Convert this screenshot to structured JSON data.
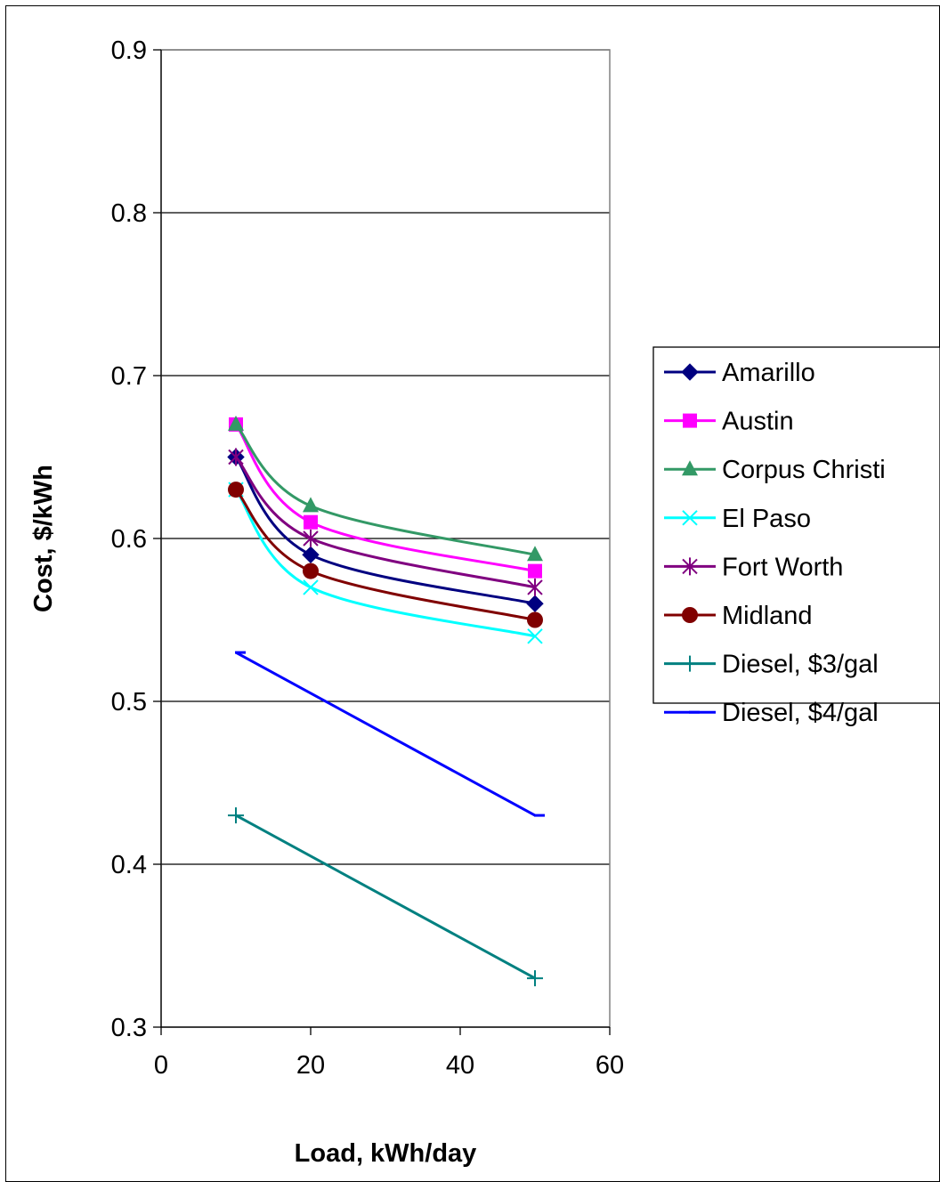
{
  "chart_data": {
    "type": "line",
    "xlabel": "Load, kWh/day",
    "ylabel": "Cost, $/kWh",
    "xlim": [
      0,
      60
    ],
    "ylim": [
      0.3,
      0.9
    ],
    "x_ticks": [
      "0",
      "20",
      "40",
      "60"
    ],
    "y_ticks": [
      "0.3",
      "0.4",
      "0.5",
      "0.6",
      "0.7",
      "0.8",
      "0.9"
    ],
    "grid": "horizontal major gridlines",
    "legend_position": "right",
    "series": [
      {
        "name": "Amarillo",
        "x": [
          10,
          20,
          50
        ],
        "values": [
          0.65,
          0.59,
          0.56
        ],
        "color": "#000080",
        "marker": "diamond",
        "smooth": true
      },
      {
        "name": "Austin",
        "x": [
          10,
          20,
          50
        ],
        "values": [
          0.67,
          0.61,
          0.58
        ],
        "color": "#FF00FF",
        "marker": "square",
        "smooth": true
      },
      {
        "name": "Corpus Christi",
        "x": [
          10,
          20,
          50
        ],
        "values": [
          0.67,
          0.62,
          0.59
        ],
        "color": "#339966",
        "marker": "triangle",
        "smooth": true
      },
      {
        "name": "El Paso",
        "x": [
          10,
          20,
          50
        ],
        "values": [
          0.63,
          0.57,
          0.54
        ],
        "color": "#00FFFF",
        "marker": "x",
        "smooth": true
      },
      {
        "name": "Fort Worth",
        "x": [
          10,
          20,
          50
        ],
        "values": [
          0.65,
          0.6,
          0.57
        ],
        "color": "#800080",
        "marker": "star",
        "smooth": true
      },
      {
        "name": "Midland",
        "x": [
          10,
          20,
          50
        ],
        "values": [
          0.63,
          0.58,
          0.55
        ],
        "color": "#800000",
        "marker": "circle",
        "smooth": true
      },
      {
        "name": "Diesel, $3/gal",
        "x": [
          10,
          50
        ],
        "values": [
          0.43,
          0.33
        ],
        "color": "#008080",
        "marker": "plus",
        "smooth": false
      },
      {
        "name": "Diesel, $4/gal",
        "x": [
          10,
          50
        ],
        "values": [
          0.53,
          0.43
        ],
        "color": "#0000FF",
        "marker": "dash",
        "smooth": false
      }
    ]
  }
}
